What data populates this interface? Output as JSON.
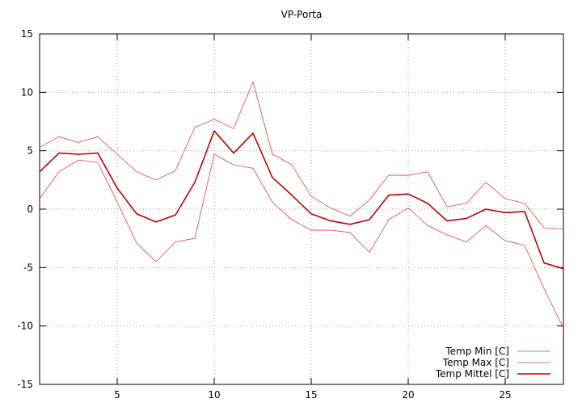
{
  "chart_data": {
    "type": "line",
    "title": "VP-Porta",
    "xlabel": "",
    "ylabel": "",
    "xlim": [
      1,
      28
    ],
    "ylim": [
      -15,
      15
    ],
    "xticks": [
      5,
      10,
      15,
      20,
      25
    ],
    "yticks": [
      -15,
      -10,
      -5,
      0,
      5,
      10,
      15
    ],
    "grid": true,
    "legend_position": "bottom-right",
    "x": [
      1,
      2,
      3,
      4,
      5,
      6,
      7,
      8,
      9,
      10,
      11,
      12,
      13,
      14,
      15,
      16,
      17,
      18,
      19,
      20,
      21,
      22,
      23,
      24,
      25,
      26,
      27,
      28
    ],
    "series": [
      {
        "name": "Temp Min [C]",
        "color": "#e04040",
        "width": 0.8,
        "values": [
          0.9,
          3.2,
          4.2,
          4.0,
          0.6,
          -2.9,
          -4.5,
          -2.8,
          -2.5,
          4.7,
          3.8,
          3.5,
          0.6,
          -0.9,
          -1.8,
          -1.8,
          -2.0,
          -3.7,
          -0.9,
          0.1,
          -1.4,
          -2.2,
          -2.8,
          -1.4,
          -2.7,
          -3.1,
          -6.8,
          -10.2
        ]
      },
      {
        "name": "Temp Max [C]",
        "color": "#e04040",
        "width": 0.8,
        "values": [
          5.3,
          6.2,
          5.7,
          6.2,
          4.7,
          3.2,
          2.5,
          3.3,
          7.0,
          7.7,
          6.9,
          10.9,
          4.7,
          3.8,
          1.1,
          0.1,
          -0.6,
          0.8,
          2.9,
          2.9,
          3.2,
          0.2,
          0.5,
          2.3,
          0.9,
          0.5,
          -1.6,
          -1.7
        ]
      },
      {
        "name": "Temp Mittel [C]",
        "color": "#c00000",
        "width": 1.6,
        "values": [
          3.2,
          4.8,
          4.7,
          4.8,
          1.8,
          -0.4,
          -1.1,
          -0.5,
          2.3,
          6.7,
          4.8,
          6.5,
          2.7,
          1.2,
          -0.4,
          -1.0,
          -1.3,
          -0.9,
          1.2,
          1.3,
          0.5,
          -1.0,
          -0.8,
          0.0,
          -0.3,
          -0.2,
          -4.6,
          -5.1
        ]
      }
    ]
  }
}
